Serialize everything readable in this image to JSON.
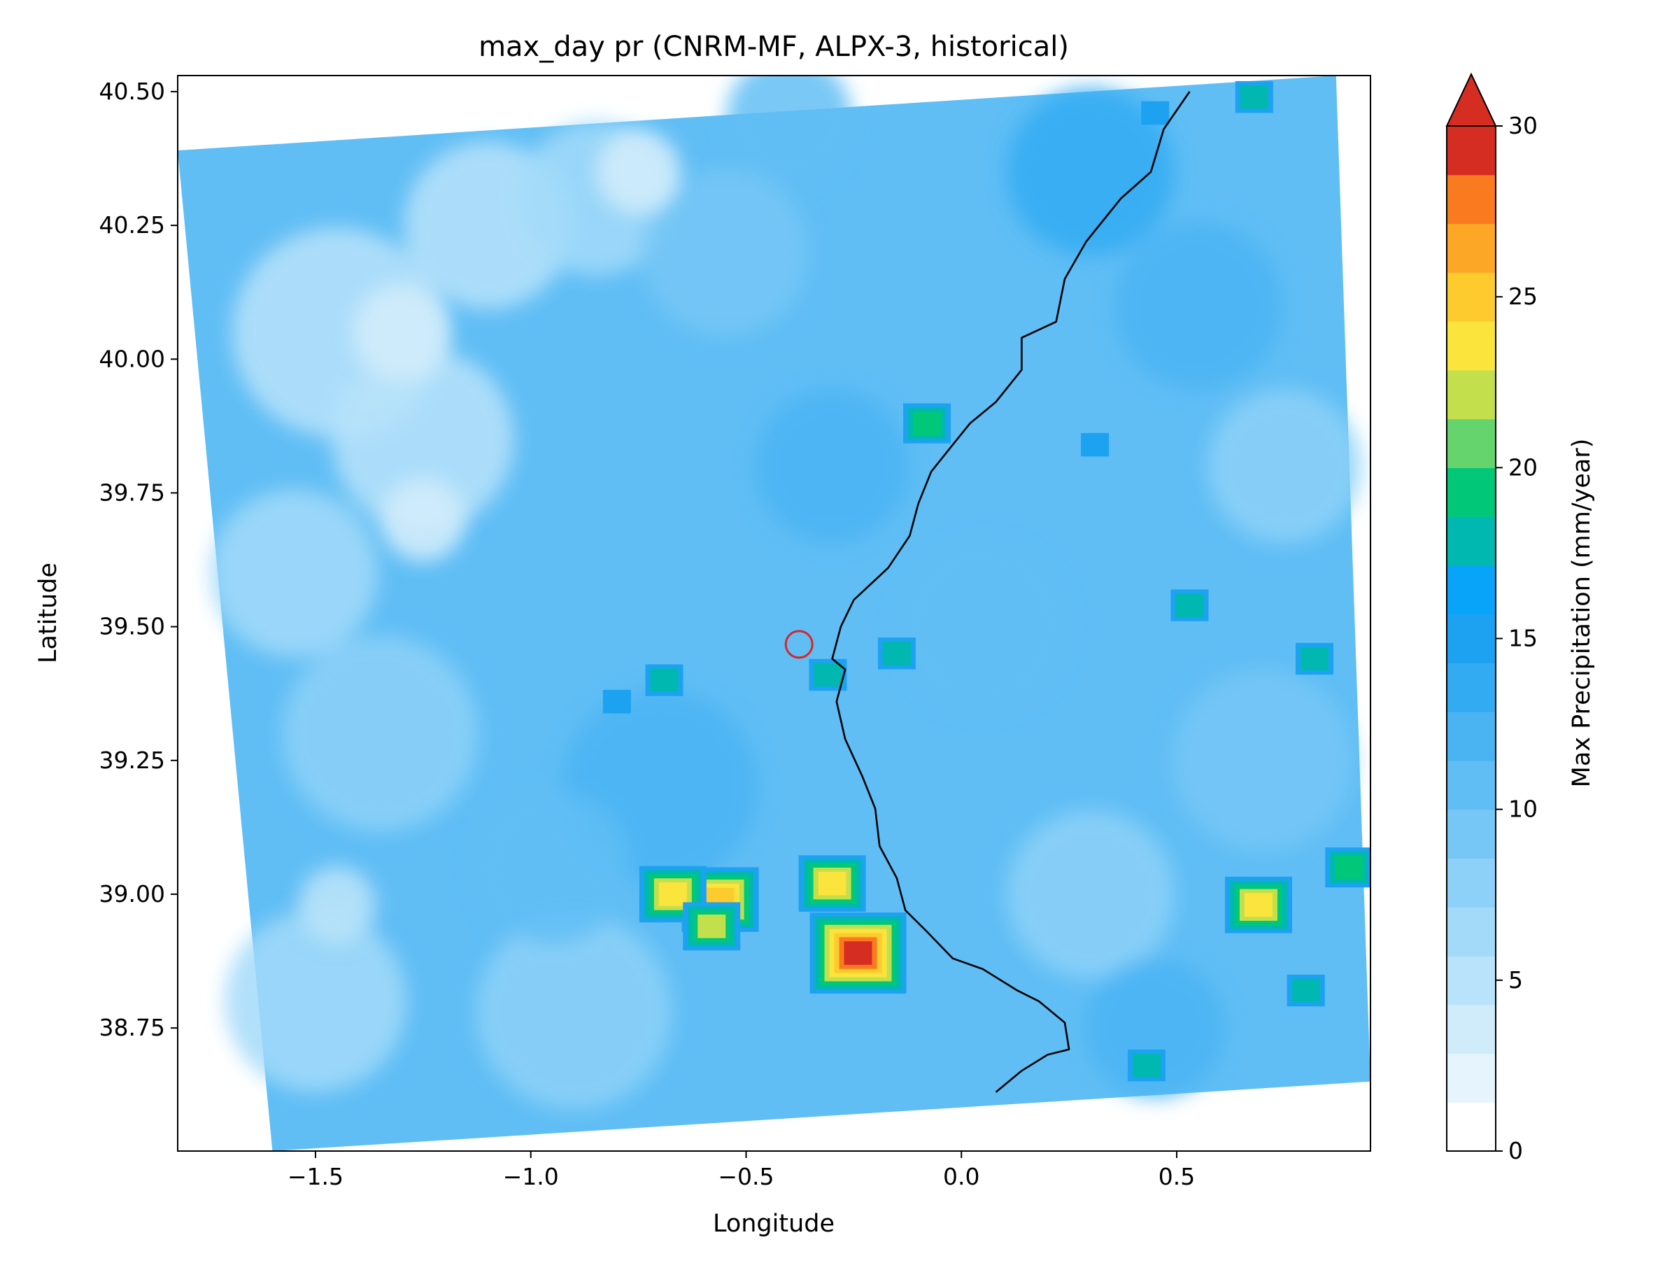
{
  "chart_data": {
    "type": "heatmap",
    "title": "max_day pr (CNRM-MF, ALPX-3, historical)",
    "xlabel": "Longitude",
    "ylabel": "Latitude",
    "xlim": [
      -1.82,
      0.95
    ],
    "ylim": [
      38.52,
      40.53
    ],
    "x_ticks": [
      -1.5,
      -1.0,
      -0.5,
      0.0,
      0.5
    ],
    "x_tick_labels": [
      "−1.5",
      "−1.0",
      "−0.5",
      "0.0",
      "0.5"
    ],
    "y_ticks": [
      38.75,
      39.0,
      39.25,
      39.5,
      39.75,
      40.0,
      40.25,
      40.5
    ],
    "y_tick_labels": [
      "38.75",
      "39.00",
      "39.25",
      "39.50",
      "39.75",
      "40.00",
      "40.25",
      "40.50"
    ],
    "colorbar": {
      "label": "Max Precipitation (mm/year)",
      "min": 0,
      "max": 30,
      "extend": "max",
      "ticks": [
        0,
        5,
        10,
        15,
        20,
        25,
        30
      ],
      "tick_labels": [
        "0",
        "5",
        "10",
        "15",
        "20",
        "25",
        "30"
      ],
      "colors": [
        "#ffffff",
        "#e6f5fd",
        "#d0ecfb",
        "#b9e3fa",
        "#a3daf9",
        "#8dd1f8",
        "#76c7f6",
        "#60bef5",
        "#4ab4f3",
        "#33abf2",
        "#1da2f1",
        "#07a4f9",
        "#00b8b0",
        "#00c878",
        "#66d46c",
        "#c4df4c",
        "#fbe43c",
        "#fecb2f",
        "#fda726",
        "#fa7a20",
        "#d62d23"
      ],
      "extend_color": "#d62d23"
    },
    "domain_corners": [
      [
        -1.82,
        40.39
      ],
      [
        0.87,
        40.53
      ],
      [
        0.95,
        38.65
      ],
      [
        -1.6,
        38.52
      ]
    ],
    "hotspots": [
      {
        "lon": -0.24,
        "lat": 38.89,
        "value": 29
      },
      {
        "lon": -0.56,
        "lat": 38.99,
        "value": 26
      },
      {
        "lon": -0.67,
        "lat": 39.0,
        "value": 24
      },
      {
        "lon": -0.3,
        "lat": 39.02,
        "value": 23
      },
      {
        "lon": 0.69,
        "lat": 38.98,
        "value": 23
      },
      {
        "lon": -0.58,
        "lat": 38.94,
        "value": 22
      },
      {
        "lon": 0.68,
        "lat": 40.49,
        "value": 18
      },
      {
        "lon": 0.9,
        "lat": 39.05,
        "value": 19
      },
      {
        "lon": -0.08,
        "lat": 39.88,
        "value": 19
      },
      {
        "lon": 0.53,
        "lat": 39.54,
        "value": 18
      },
      {
        "lon": 0.82,
        "lat": 39.44,
        "value": 18
      },
      {
        "lon": -0.69,
        "lat": 39.4,
        "value": 18
      },
      {
        "lon": -0.31,
        "lat": 39.41,
        "value": 17
      },
      {
        "lon": -0.15,
        "lat": 39.45,
        "value": 17
      },
      {
        "lon": 0.8,
        "lat": 38.82,
        "value": 17
      },
      {
        "lon": 0.43,
        "lat": 38.68,
        "value": 17
      },
      {
        "lon": -0.8,
        "lat": 39.36,
        "value": 16
      },
      {
        "lon": 0.45,
        "lat": 40.46,
        "value": 16
      },
      {
        "lon": 0.31,
        "lat": 39.84,
        "value": 16
      }
    ],
    "coastline": [
      [
        0.53,
        40.5
      ],
      [
        0.47,
        40.43
      ],
      [
        0.44,
        40.35
      ],
      [
        0.37,
        40.3
      ],
      [
        0.33,
        40.26
      ],
      [
        0.29,
        40.22
      ],
      [
        0.24,
        40.15
      ],
      [
        0.22,
        40.07
      ],
      [
        0.14,
        40.04
      ],
      [
        0.14,
        39.98
      ],
      [
        0.08,
        39.92
      ],
      [
        0.02,
        39.88
      ],
      [
        -0.02,
        39.84
      ],
      [
        -0.07,
        39.79
      ],
      [
        -0.1,
        39.73
      ],
      [
        -0.12,
        39.67
      ],
      [
        -0.17,
        39.61
      ],
      [
        -0.25,
        39.55
      ],
      [
        -0.28,
        39.5
      ],
      [
        -0.3,
        39.44
      ],
      [
        -0.27,
        39.42
      ],
      [
        -0.29,
        39.36
      ],
      [
        -0.27,
        39.29
      ],
      [
        -0.23,
        39.22
      ],
      [
        -0.2,
        39.16
      ],
      [
        -0.19,
        39.09
      ],
      [
        -0.15,
        39.03
      ],
      [
        -0.13,
        38.97
      ],
      [
        -0.08,
        38.93
      ],
      [
        -0.02,
        38.88
      ],
      [
        0.05,
        38.86
      ],
      [
        0.13,
        38.82
      ],
      [
        0.18,
        38.8
      ],
      [
        0.24,
        38.76
      ],
      [
        0.25,
        38.71
      ],
      [
        0.2,
        38.7
      ],
      [
        0.14,
        38.67
      ],
      [
        0.08,
        38.63
      ]
    ],
    "marker": {
      "lon": -0.377,
      "lat": 39.467
    }
  }
}
